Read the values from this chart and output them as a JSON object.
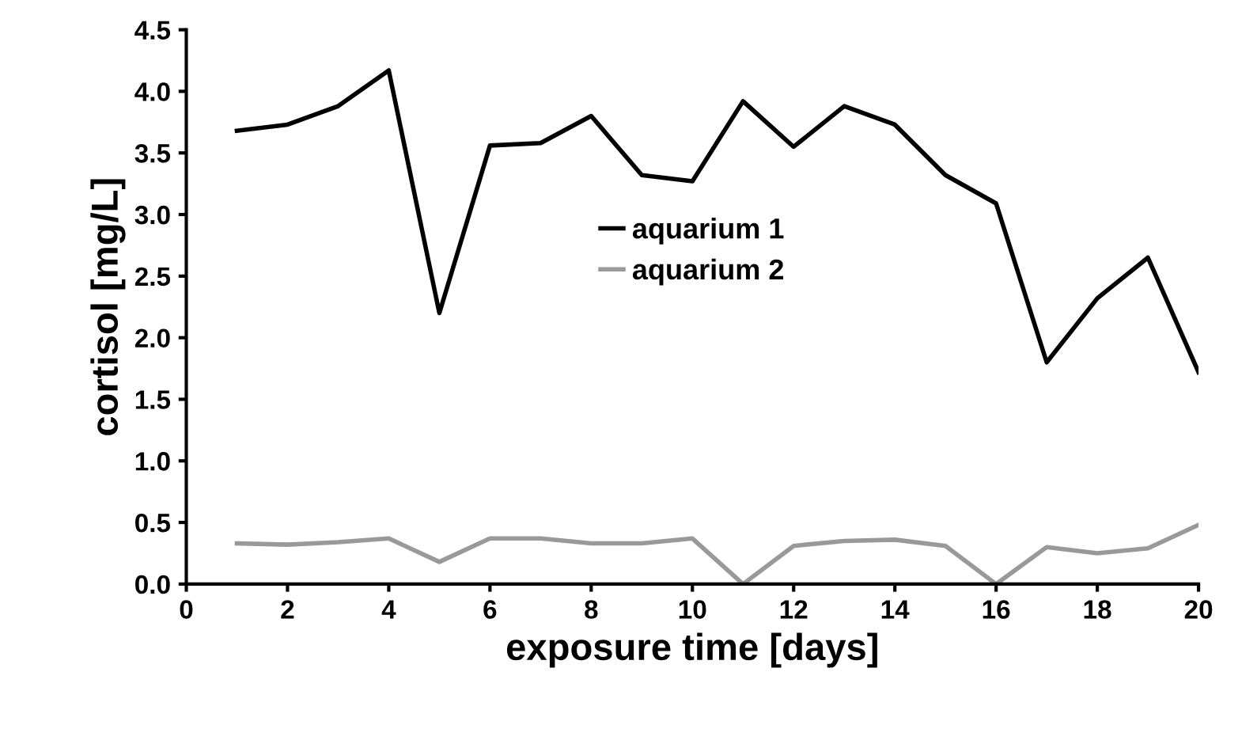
{
  "chart_data": {
    "type": "line",
    "xlabel": "exposure time [days]",
    "ylabel": "cortisol [mg/L]",
    "x": [
      1,
      2,
      3,
      4,
      5,
      6,
      7,
      8,
      9,
      10,
      11,
      12,
      13,
      14,
      15,
      16,
      17,
      18,
      19,
      20
    ],
    "series": [
      {
        "name": "aquarium 1",
        "color": "#000000",
        "values": [
          3.68,
          3.73,
          3.88,
          4.17,
          2.2,
          3.56,
          3.58,
          3.8,
          3.32,
          3.27,
          3.92,
          3.55,
          3.88,
          3.73,
          3.32,
          3.09,
          1.8,
          2.32,
          2.65,
          1.72
        ]
      },
      {
        "name": "aquarium 2",
        "color": "#999999",
        "values": [
          0.33,
          0.32,
          0.34,
          0.37,
          0.18,
          0.37,
          0.37,
          0.33,
          0.33,
          0.37,
          0.0,
          0.31,
          0.35,
          0.36,
          0.31,
          0.0,
          0.3,
          0.25,
          0.29,
          0.48
        ]
      }
    ],
    "xlim": [
      0,
      20
    ],
    "xticks": [
      0,
      2,
      4,
      6,
      8,
      10,
      12,
      14,
      16,
      18,
      20
    ],
    "ylim": [
      0,
      4.5
    ],
    "yticks": [
      {
        "value": 0,
        "label": "0.0"
      },
      {
        "value": 0.5,
        "label": "0.5"
      },
      {
        "value": 1,
        "label": "1.0"
      },
      {
        "value": 1.5,
        "label": "1.5"
      },
      {
        "value": 2,
        "label": "2.0"
      },
      {
        "value": 2.5,
        "label": "2.5"
      },
      {
        "value": 3,
        "label": "3.0"
      },
      {
        "value": 3.5,
        "label": "3.5"
      },
      {
        "value": 4,
        "label": "4.0"
      },
      {
        "value": 4.5,
        "label": "4.5"
      }
    ],
    "grid": false,
    "legend": "center",
    "marker": "none",
    "line_style": "solid"
  }
}
